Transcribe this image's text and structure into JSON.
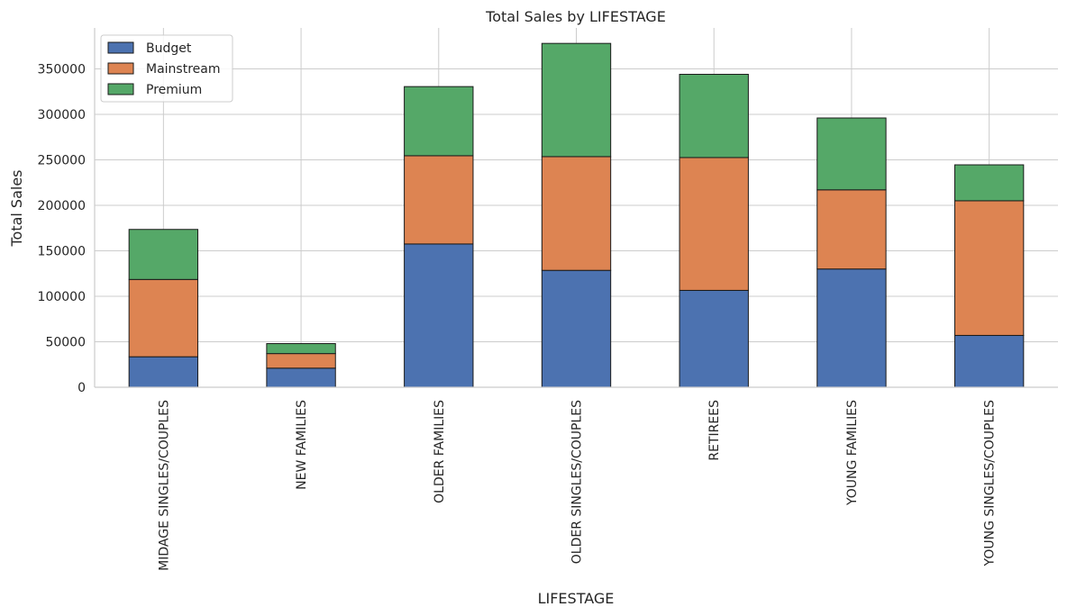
{
  "chart_data": {
    "type": "bar",
    "stacked": true,
    "title": "Total Sales by LIFESTAGE",
    "xlabel": "LIFESTAGE",
    "ylabel": "Total Sales",
    "ylim": [
      0,
      395000
    ],
    "yticks": [
      0,
      50000,
      100000,
      150000,
      200000,
      250000,
      300000,
      350000
    ],
    "grid": true,
    "legend_position": "top-left",
    "categories": [
      "MIDAGE SINGLES/COUPLES",
      "NEW FAMILIES",
      "OLDER FAMILIES",
      "OLDER SINGLES/COUPLES",
      "RETIREES",
      "YOUNG FAMILIES",
      "YOUNG SINGLES/COUPLES"
    ],
    "series": [
      {
        "name": "Budget",
        "color": "#4c72b0",
        "values": [
          33500,
          21000,
          157500,
          128500,
          106500,
          130000,
          57000
        ]
      },
      {
        "name": "Mainstream",
        "color": "#dd8452",
        "values": [
          85000,
          16000,
          97000,
          125000,
          146000,
          87000,
          148000
        ]
      },
      {
        "name": "Premium",
        "color": "#55a868",
        "values": [
          55000,
          11000,
          76000,
          124500,
          91500,
          79000,
          39500
        ]
      }
    ]
  }
}
